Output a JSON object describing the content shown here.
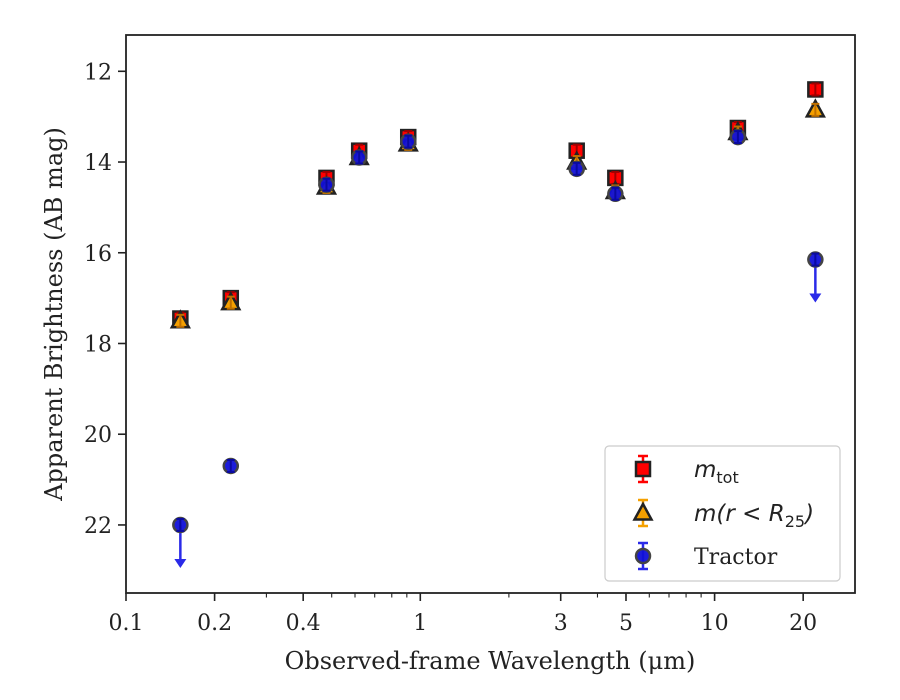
{
  "chart_data": {
    "type": "scatter",
    "xscale": "log",
    "yaxis_inverted": true,
    "xlim": [
      0.1,
      30
    ],
    "ylim": [
      23.5,
      11.2
    ],
    "xlabel": "Observed-frame Wavelength (μm)",
    "ylabel": "Apparent Brightness (AB mag)",
    "xticks": [
      {
        "value": 0.1,
        "label": "0.1"
      },
      {
        "value": 0.2,
        "label": "0.2"
      },
      {
        "value": 0.4,
        "label": "0.4"
      },
      {
        "value": 1,
        "label": "1"
      },
      {
        "value": 3,
        "label": "3"
      },
      {
        "value": 5,
        "label": "5"
      },
      {
        "value": 10,
        "label": "10"
      },
      {
        "value": 20,
        "label": "20"
      }
    ],
    "yticks": [
      {
        "value": 12,
        "label": "12"
      },
      {
        "value": 14,
        "label": "14"
      },
      {
        "value": 16,
        "label": "16"
      },
      {
        "value": 18,
        "label": "18"
      },
      {
        "value": 20,
        "label": "20"
      },
      {
        "value": 22,
        "label": "22"
      }
    ],
    "legend_position": "lower-right",
    "series": [
      {
        "name": "m_tot",
        "legend_main": "m",
        "legend_sub": "tot",
        "marker": "square",
        "color": "#ff0000",
        "edge": "#222222",
        "points": [
          {
            "x": 0.153,
            "y": 17.45
          },
          {
            "x": 0.227,
            "y": 17.0
          },
          {
            "x": 0.48,
            "y": 14.35
          },
          {
            "x": 0.62,
            "y": 13.75
          },
          {
            "x": 0.91,
            "y": 13.45
          },
          {
            "x": 3.4,
            "y": 13.75
          },
          {
            "x": 4.6,
            "y": 14.35
          },
          {
            "x": 12.0,
            "y": 13.25
          },
          {
            "x": 22.0,
            "y": 12.4
          }
        ]
      },
      {
        "name": "m(r < R25)",
        "legend_main": "m(r < R",
        "legend_sub": "25",
        "legend_close": ")",
        "marker": "triangle",
        "color": "#f5a000",
        "edge": "#222222",
        "points": [
          {
            "x": 0.153,
            "y": 17.5
          },
          {
            "x": 0.227,
            "y": 17.1
          },
          {
            "x": 0.48,
            "y": 14.55
          },
          {
            "x": 0.62,
            "y": 13.9
          },
          {
            "x": 0.91,
            "y": 13.6
          },
          {
            "x": 3.4,
            "y": 14.0
          },
          {
            "x": 4.6,
            "y": 14.65
          },
          {
            "x": 12.0,
            "y": 13.35
          },
          {
            "x": 22.0,
            "y": 12.85
          }
        ]
      },
      {
        "name": "Tractor",
        "marker": "circle",
        "color": "#1010d8",
        "edge": "#444444",
        "points": [
          {
            "x": 0.153,
            "y": 22.0,
            "upper_limit": true
          },
          {
            "x": 0.227,
            "y": 20.7
          },
          {
            "x": 0.48,
            "y": 14.5
          },
          {
            "x": 0.62,
            "y": 13.9
          },
          {
            "x": 0.91,
            "y": 13.55
          },
          {
            "x": 3.4,
            "y": 14.15
          },
          {
            "x": 4.6,
            "y": 14.7
          },
          {
            "x": 12.0,
            "y": 13.45
          },
          {
            "x": 22.0,
            "y": 16.15,
            "upper_limit": true
          }
        ]
      }
    ]
  }
}
